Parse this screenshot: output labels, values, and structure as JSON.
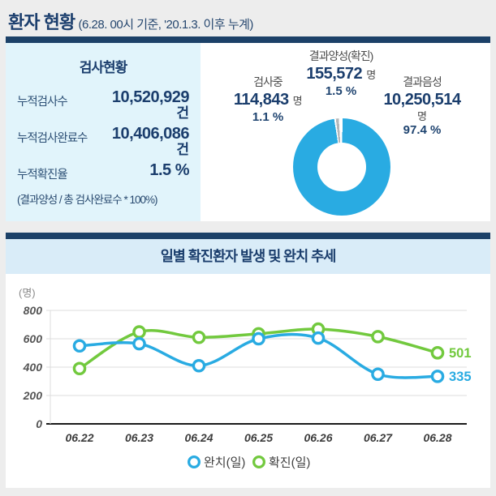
{
  "header": {
    "title": "환자 현황",
    "subtitle": "(6.28. 00시 기준, '20.1.3. 이후 누계)"
  },
  "test_status": {
    "title": "검사현황",
    "rows": [
      {
        "label": "누적검사수",
        "value": "10,520,929",
        "unit": "건"
      },
      {
        "label": "누적검사완료수",
        "value": "10,406,086",
        "unit": "건"
      },
      {
        "label": "누적확진율",
        "value": "1.5 %",
        "unit": ""
      }
    ],
    "footnote": "(결과양성 / 총 검사완료수 * 100%)"
  },
  "donut": {
    "positive": {
      "label": "결과양성(확진)",
      "value": "155,572",
      "unit": "명",
      "percent": "1.5 %",
      "share": 1.5
    },
    "testing": {
      "label": "검사중",
      "value": "114,843",
      "unit": "명",
      "percent": "1.1 %",
      "share": 1.1
    },
    "negative": {
      "label": "결과음성",
      "value": "10,250,514",
      "unit": "명",
      "percent": "97.4 %",
      "share": 97.4
    }
  },
  "chart_data": {
    "type": "line",
    "title": "일별 확진환자 발생 및 완치 추세",
    "ylabel": "(명)",
    "ylim": [
      0,
      800
    ],
    "yticks": [
      0,
      200,
      400,
      600,
      800
    ],
    "categories": [
      "06.22",
      "06.23",
      "06.24",
      "06.25",
      "06.26",
      "06.27",
      "06.28"
    ],
    "series": [
      {
        "name": "확진(일)",
        "color": "#72c93e",
        "values": [
          390,
          648,
          610,
          635,
          668,
          615,
          501
        ],
        "end_label": "501"
      },
      {
        "name": "완치(일)",
        "color": "#29abe2",
        "values": [
          550,
          565,
          410,
          600,
          605,
          350,
          335
        ],
        "end_label": "335"
      }
    ],
    "legend": [
      "완치(일)",
      "확진(일)"
    ],
    "legend_position": "bottom",
    "grid": true
  },
  "colors": {
    "navy_text": "#1b3e6d",
    "bar_navy": "#1c4168",
    "panel_cyan": "#e1f4fb",
    "band_blue": "#d9ecf8",
    "donut_main": "#29abe2",
    "donut_gray": "#b4b7b9",
    "line_blue": "#29abe2",
    "line_green": "#72c93e",
    "grid_gray": "#dcdcdc",
    "axis_black": "#1a1a1a"
  }
}
